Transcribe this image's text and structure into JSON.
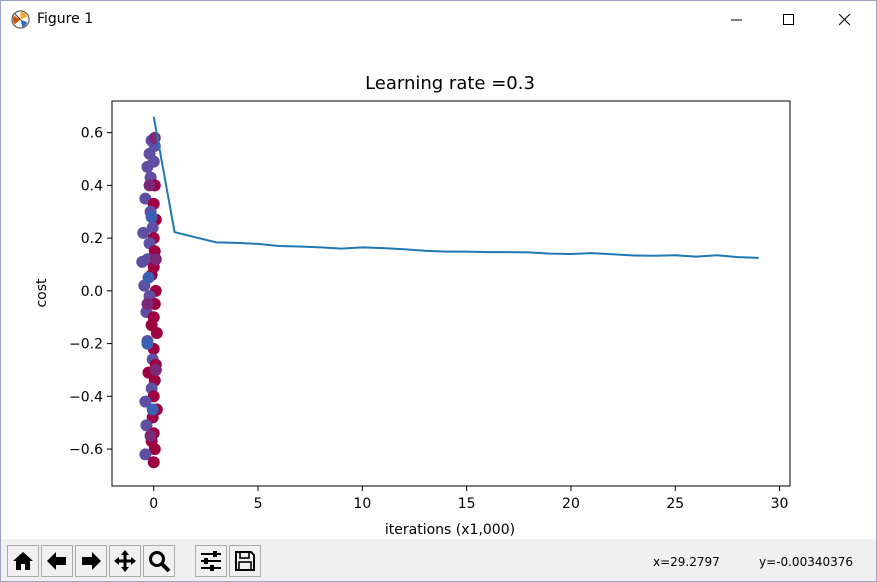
{
  "window": {
    "title": "Figure 1",
    "icon": "matplotlib-figure-icon"
  },
  "controls": {
    "minimize_icon": "minimize-icon",
    "maximize_icon": "maximize-icon",
    "close_icon": "close-icon"
  },
  "toolbar": {
    "buttons": [
      {
        "name": "home-icon"
      },
      {
        "name": "back-arrow-icon"
      },
      {
        "name": "forward-arrow-icon"
      },
      {
        "name": "pan-icon"
      },
      {
        "name": "zoom-icon"
      },
      {
        "name": "configure-subplots-icon"
      },
      {
        "name": "save-icon"
      }
    ],
    "coord_x": "x=29.2797",
    "coord_y": "y=-0.00340376"
  },
  "chart_data": {
    "type": "line",
    "title": "Learning rate =0.3",
    "xlabel": "iterations (x1,000)",
    "ylabel": "cost",
    "xlim": [
      -2,
      30.5
    ],
    "ylim": [
      -0.74,
      0.72
    ],
    "xticks": [
      0,
      5,
      10,
      15,
      20,
      25,
      30
    ],
    "yticks": [
      -0.6,
      -0.4,
      -0.2,
      0.0,
      0.2,
      0.4,
      0.6
    ],
    "xtick_labels": [
      "0",
      "5",
      "10",
      "15",
      "20",
      "25",
      "30"
    ],
    "ytick_labels": [
      "−0.6",
      "−0.4",
      "−0.2",
      "0.0",
      "0.2",
      "0.4",
      "0.6"
    ],
    "line_color": "#1f77b4",
    "series": [
      {
        "x": [
          0,
          1,
          2,
          3,
          4,
          5,
          6,
          7,
          8,
          9,
          10,
          11,
          12,
          13,
          14,
          15,
          16,
          17,
          18,
          19,
          20,
          21,
          22,
          23,
          24,
          25,
          26,
          27,
          28,
          29
        ],
        "values": [
          0.66,
          0.223,
          0.203,
          0.184,
          0.182,
          0.178,
          0.17,
          0.168,
          0.165,
          0.16,
          0.165,
          0.162,
          0.158,
          0.152,
          0.149,
          0.149,
          0.147,
          0.147,
          0.146,
          0.141,
          0.14,
          0.143,
          0.139,
          0.134,
          0.133,
          0.135,
          0.13,
          0.135,
          0.128,
          0.125
        ]
      }
    ],
    "scatter_overlay": {
      "colors": [
        "#9e0142",
        "#5e4fa2",
        "#7a2a77",
        "#3b5fb3"
      ],
      "points": [
        [
          -0.1,
          0.57,
          1
        ],
        [
          0.05,
          0.55,
          1
        ],
        [
          -0.2,
          0.52,
          1
        ],
        [
          0.0,
          0.49,
          1
        ],
        [
          -0.3,
          0.47,
          1
        ],
        [
          -0.15,
          0.43,
          1
        ],
        [
          0.05,
          0.4,
          0
        ],
        [
          -0.4,
          0.35,
          1
        ],
        [
          0.0,
          0.33,
          0
        ],
        [
          -0.15,
          0.3,
          1
        ],
        [
          0.1,
          0.27,
          0
        ],
        [
          -0.05,
          0.24,
          1
        ],
        [
          -0.5,
          0.22,
          1
        ],
        [
          0.0,
          0.2,
          0
        ],
        [
          -0.2,
          0.18,
          1
        ],
        [
          0.05,
          0.15,
          0
        ],
        [
          -0.3,
          0.12,
          1
        ],
        [
          -0.55,
          0.11,
          1
        ],
        [
          0.0,
          0.09,
          0
        ],
        [
          -0.1,
          0.06,
          0
        ],
        [
          -0.45,
          0.02,
          1
        ],
        [
          0.1,
          0.0,
          0
        ],
        [
          -0.2,
          -0.02,
          1
        ],
        [
          0.05,
          -0.05,
          0
        ],
        [
          -0.35,
          -0.08,
          1
        ],
        [
          0.0,
          -0.1,
          0
        ],
        [
          -0.1,
          -0.13,
          0
        ],
        [
          0.15,
          -0.16,
          0
        ],
        [
          -0.3,
          -0.19,
          1
        ],
        [
          0.0,
          -0.22,
          0
        ],
        [
          -0.05,
          -0.26,
          1
        ],
        [
          0.1,
          -0.28,
          0
        ],
        [
          -0.25,
          -0.31,
          0
        ],
        [
          0.05,
          -0.34,
          0
        ],
        [
          -0.1,
          -0.37,
          1
        ],
        [
          0.0,
          -0.4,
          0
        ],
        [
          -0.4,
          -0.42,
          1
        ],
        [
          0.15,
          -0.45,
          0
        ],
        [
          -0.05,
          -0.48,
          0
        ],
        [
          -0.35,
          -0.51,
          1
        ],
        [
          0.0,
          -0.54,
          0
        ],
        [
          -0.1,
          -0.57,
          0
        ],
        [
          0.05,
          -0.6,
          0
        ],
        [
          -0.4,
          -0.62,
          1
        ],
        [
          0.0,
          -0.65,
          0
        ],
        [
          -0.3,
          -0.05,
          2
        ],
        [
          -0.2,
          0.4,
          2
        ],
        [
          0.1,
          -0.3,
          2
        ],
        [
          -0.15,
          -0.55,
          2
        ],
        [
          -0.25,
          0.05,
          3
        ],
        [
          -0.1,
          0.28,
          3
        ],
        [
          -0.05,
          -0.45,
          3
        ],
        [
          0.05,
          0.58,
          2
        ],
        [
          -0.3,
          -0.2,
          3
        ],
        [
          0.1,
          0.12,
          2
        ]
      ]
    }
  }
}
